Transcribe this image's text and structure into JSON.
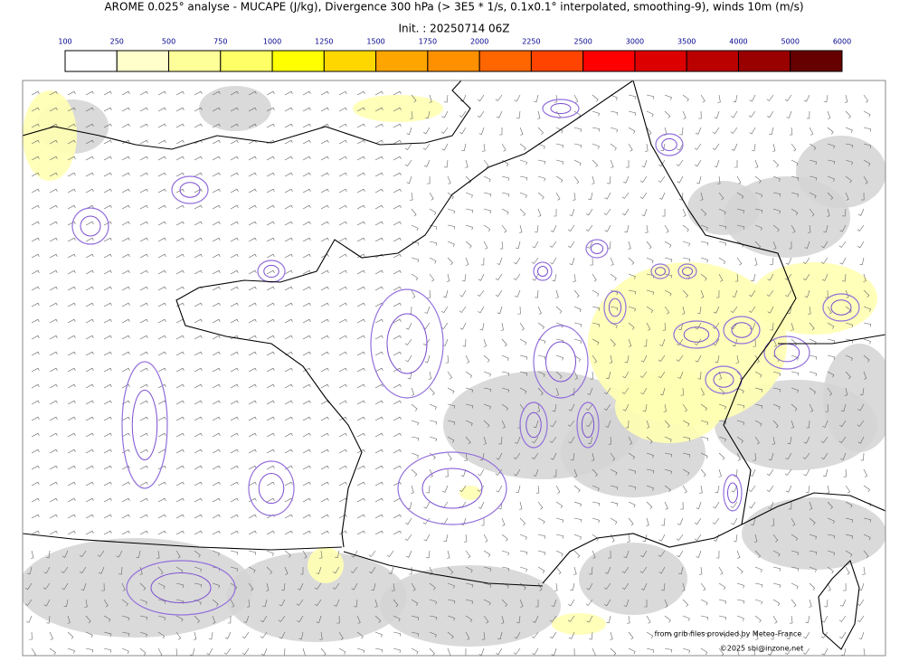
{
  "title": "AROME 0.025° analyse - MUCAPE (J/kg), Divergence 300 hPa (> 3E5 * 1/s, 0.1x0.1° interpolated, smoothing-9), winds 10m (m/s)",
  "subtitle": "Init. : 20250714 06Z",
  "colorbar": {
    "ticks": [
      100,
      250,
      500,
      750,
      1000,
      1250,
      1500,
      1750,
      2000,
      2250,
      2500,
      3000,
      3500,
      4000,
      5000,
      6000
    ],
    "colors": [
      "#ffffff",
      "#ffffcc",
      "#ffff99",
      "#ffff66",
      "#ffff00",
      "#ffd700",
      "#ffa500",
      "#ff9000",
      "#ff6600",
      "#ff4400",
      "#ff0000",
      "#dd0000",
      "#bb0000",
      "#990000",
      "#660000"
    ]
  },
  "credits": [
    "from grib files provided by Meteo-France",
    "©2025 sbi@inzone.net"
  ]
}
